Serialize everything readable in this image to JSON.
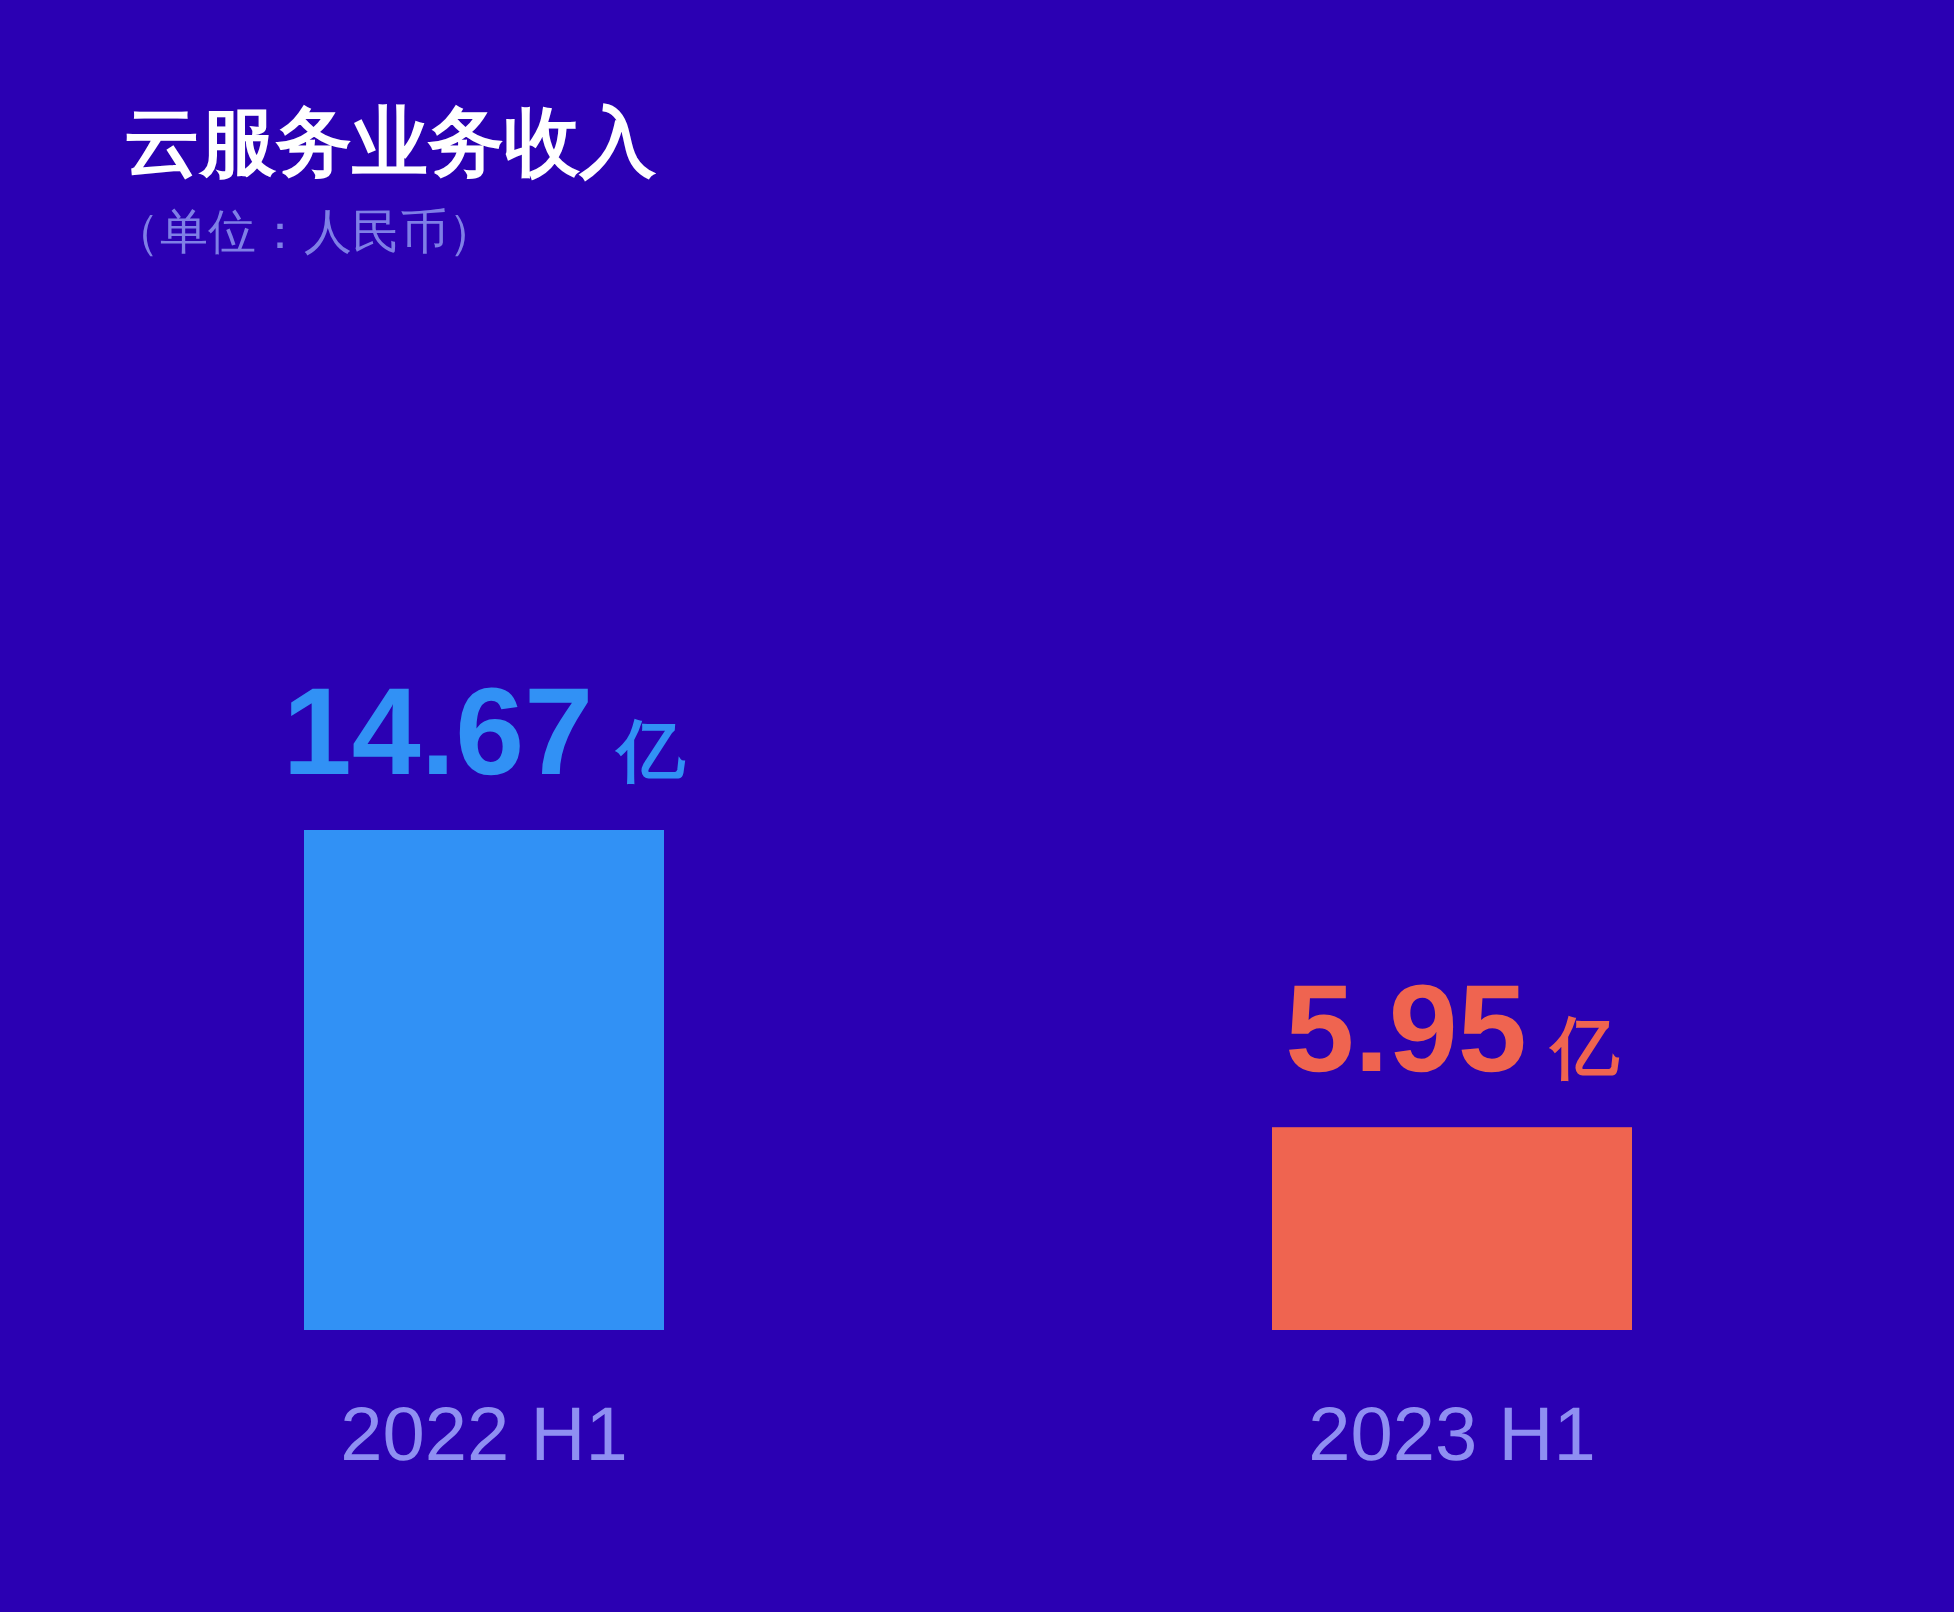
{
  "chart_data": {
    "type": "bar",
    "title": "云服务业务收入",
    "subtitle": "（单位：人民币）",
    "categories": [
      "2022 H1",
      "2023 H1"
    ],
    "values": [
      14.67,
      5.95
    ],
    "colors": [
      "#3191f5",
      "#ef6450"
    ],
    "value_labels": [
      "14.67 亿",
      "5.95 亿"
    ]
  }
}
